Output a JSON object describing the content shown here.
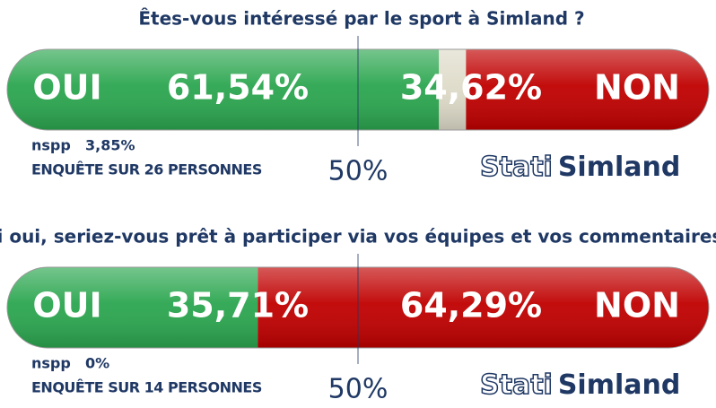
{
  "chart_data": [
    {
      "type": "bar",
      "title": "Êtes-vous intéressé par le sport à Simland ?",
      "series": [
        {
          "name": "OUI",
          "color": "#2ba64f",
          "values": [
            61.54
          ],
          "value_labels": [
            "61,54%"
          ]
        },
        {
          "name": "nspp",
          "color": "#dedbc9",
          "values": [
            3.85
          ],
          "value_labels": [
            "3,85%"
          ]
        },
        {
          "name": "NON",
          "color": "#c00000",
          "values": [
            34.62
          ],
          "value_labels": [
            "34,62%"
          ]
        }
      ],
      "xlim": [
        0,
        100
      ],
      "xticks": [
        {
          "value": 50,
          "label": "50%"
        }
      ],
      "note": "ENQUÊTE SUR 26 PERSONNES"
    },
    {
      "type": "bar",
      "title": "Si oui, seriez-vous prêt à participer via vos équipes et vos commentaires ?",
      "series": [
        {
          "name": "OUI",
          "color": "#2ba64f",
          "values": [
            35.71
          ],
          "value_labels": [
            "35,71%"
          ]
        },
        {
          "name": "nspp",
          "color": "#dedbc9",
          "values": [
            0
          ],
          "value_labels": [
            "0%"
          ]
        },
        {
          "name": "NON",
          "color": "#c00000",
          "values": [
            64.29
          ],
          "value_labels": [
            "64,29%"
          ]
        }
      ],
      "xlim": [
        0,
        100
      ],
      "xticks": [
        {
          "value": 50,
          "label": "50%"
        }
      ],
      "note": "ENQUÊTE SUR 14 PERSONNES"
    }
  ],
  "logo": [
    "Stati",
    "Simland"
  ]
}
